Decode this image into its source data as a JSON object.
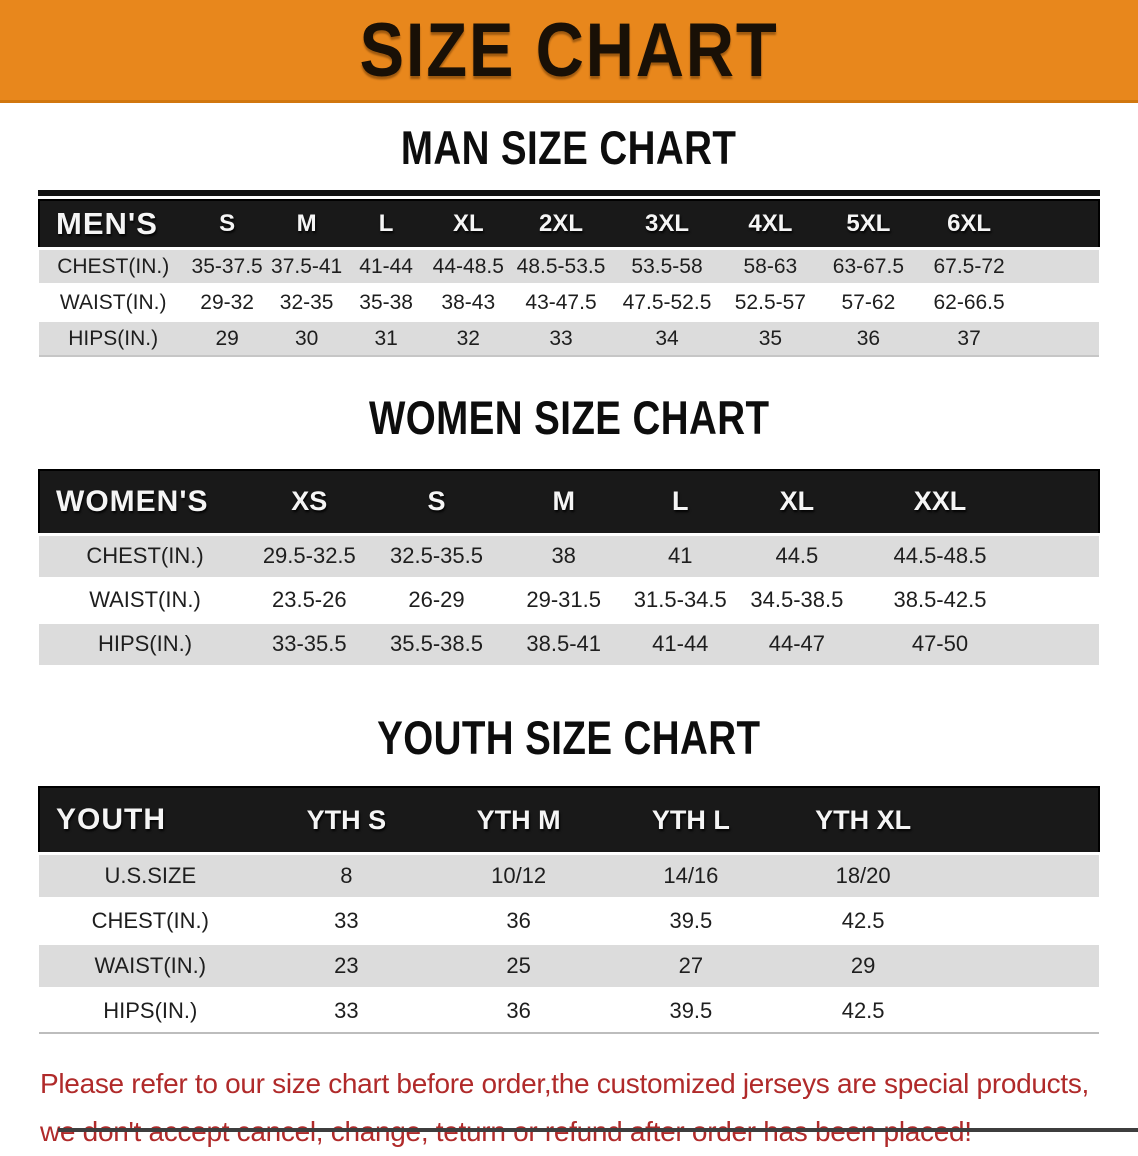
{
  "banner": {
    "title": "SIZE CHART"
  },
  "sections": [
    {
      "title": "MAN SIZE CHART",
      "table": {
        "header": [
          "MEN'S",
          "S",
          "M",
          "L",
          "XL",
          "2XL",
          "3XL",
          "4XL",
          "5XL",
          "6XL"
        ],
        "rows": [
          {
            "label": "CHEST(IN.)",
            "values": [
              "35-37.5",
              "37.5-41",
              "41-44",
              "44-48.5",
              "48.5-53.5",
              "53.5-58",
              "58-63",
              "63-67.5",
              "67.5-72"
            ]
          },
          {
            "label": "WAIST(IN.)",
            "values": [
              "29-32",
              "32-35",
              "35-38",
              "38-43",
              "43-47.5",
              "47.5-52.5",
              "52.5-57",
              "57-62",
              "62-66.5"
            ]
          },
          {
            "label": "HIPS(IN.)",
            "values": [
              "29",
              "30",
              "31",
              "32",
              "33",
              "34",
              "35",
              "36",
              "37"
            ]
          }
        ]
      }
    },
    {
      "title": "WOMEN SIZE CHART",
      "table": {
        "header": [
          "WOMEN'S",
          "XS",
          "S",
          "M",
          "L",
          "XL",
          "XXL"
        ],
        "rows": [
          {
            "label": "CHEST(IN.)",
            "values": [
              "29.5-32.5",
              "32.5-35.5",
              "38",
              "41",
              "44.5",
              "44.5-48.5"
            ]
          },
          {
            "label": "WAIST(IN.)",
            "values": [
              "23.5-26",
              "26-29",
              "29-31.5",
              "31.5-34.5",
              "34.5-38.5",
              "38.5-42.5"
            ]
          },
          {
            "label": "HIPS(IN.)",
            "values": [
              "33-35.5",
              "35.5-38.5",
              "38.5-41",
              "41-44",
              "44-47",
              "47-50"
            ]
          }
        ]
      }
    },
    {
      "title": "YOUTH SIZE CHART",
      "table": {
        "header": [
          "YOUTH",
          "YTH S",
          "YTH M",
          "YTH L",
          "YTH XL"
        ],
        "rows": [
          {
            "label": "U.S.SIZE",
            "values": [
              "8",
              "10/12",
              "14/16",
              "18/20"
            ]
          },
          {
            "label": "CHEST(IN.)",
            "values": [
              "33",
              "36",
              "39.5",
              "42.5"
            ]
          },
          {
            "label": "WAIST(IN.)",
            "values": [
              "23",
              "25",
              "27",
              "29"
            ]
          },
          {
            "label": "HIPS(IN.)",
            "values": [
              "33",
              "36",
              "39.5",
              "42.5"
            ]
          }
        ]
      }
    }
  ],
  "disclaimer": {
    "line1": "Please refer to our size chart before order,the customized jerseys are special products,",
    "line2": "we don't accept cancel, change, teturn or refund after order has been placed!"
  },
  "colors": {
    "banner_bg": "#E8871C",
    "header_bar": "#191919",
    "row_gray": "#DCDCDC",
    "row_white": "#FFFFFF",
    "disclaimer_text": "#B02A2A"
  }
}
